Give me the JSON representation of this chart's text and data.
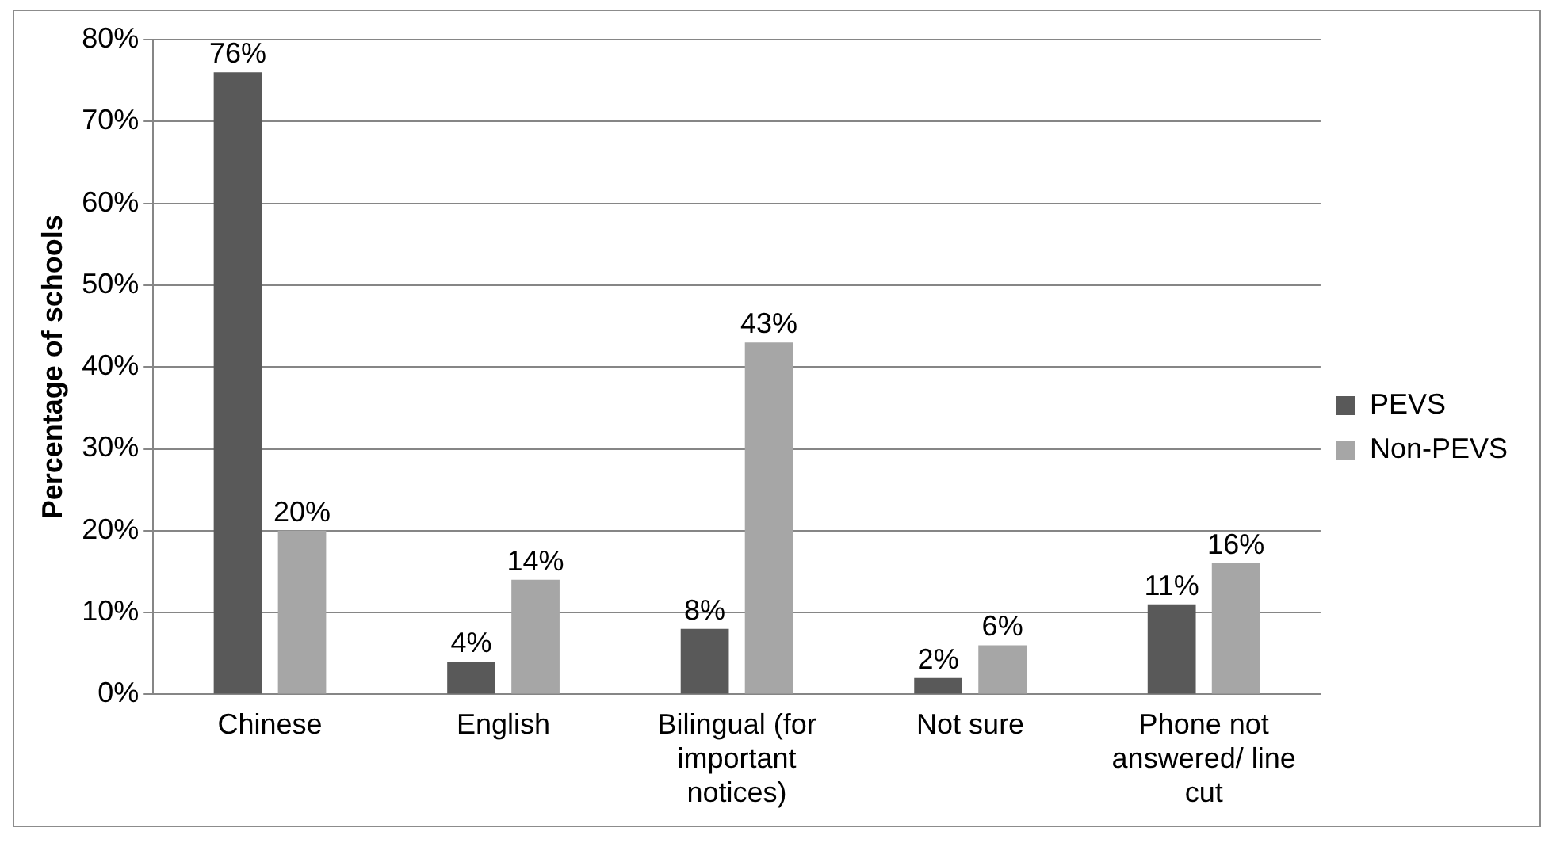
{
  "chart_data": {
    "type": "bar",
    "ylabel": "Percentage of schools",
    "categories": [
      "Chinese",
      "English",
      "Bilingual (for important notices)",
      "Not sure",
      "Phone not answered/ line cut"
    ],
    "series": [
      {
        "name": "PEVS",
        "color": "#595959",
        "values": [
          76,
          4,
          8,
          2,
          11
        ],
        "value_labels": [
          "76%",
          "4%",
          "8%",
          "2%",
          "11%"
        ]
      },
      {
        "name": "Non-PEVS",
        "color": "#a6a6a6",
        "values": [
          20,
          14,
          43,
          6,
          16
        ],
        "value_labels": [
          "20%",
          "14%",
          "43%",
          "6%",
          "16%"
        ]
      }
    ],
    "ylim": [
      0,
      80
    ],
    "yticks": [
      {
        "value": 0,
        "label": "0%"
      },
      {
        "value": 10,
        "label": "10%"
      },
      {
        "value": 20,
        "label": "20%"
      },
      {
        "value": 30,
        "label": "30%"
      },
      {
        "value": 40,
        "label": "40%"
      },
      {
        "value": 50,
        "label": "50%"
      },
      {
        "value": 60,
        "label": "60%"
      },
      {
        "value": 70,
        "label": "70%"
      },
      {
        "value": 80,
        "label": "80%"
      }
    ],
    "grid": "y",
    "legend": "right"
  }
}
